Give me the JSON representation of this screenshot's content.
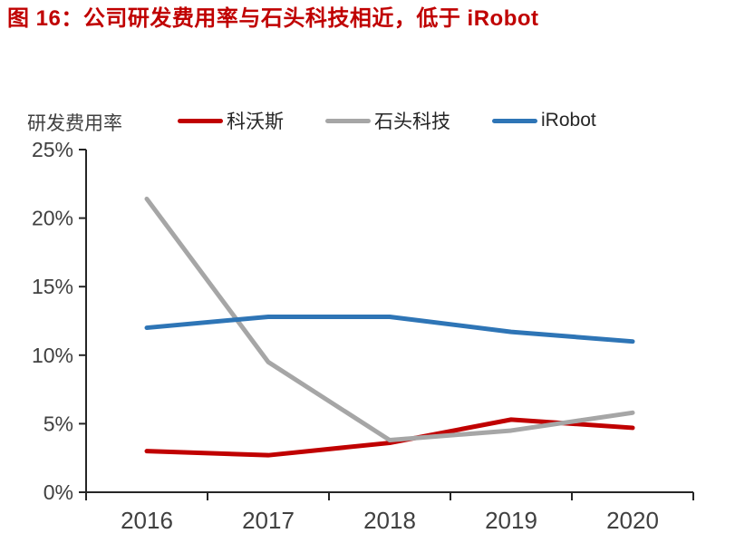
{
  "header": {
    "title": "图 16：公司研发费用率与石头科技相近，低于 iRobot"
  },
  "chart_data": {
    "type": "line",
    "y_axis_title": "研发费用率",
    "categories": [
      "2016",
      "2017",
      "2018",
      "2019",
      "2020"
    ],
    "series": [
      {
        "name": "科沃斯",
        "color": "#c00000",
        "values": [
          3.0,
          2.7,
          3.6,
          5.3,
          4.7
        ]
      },
      {
        "name": "石头科技",
        "color": "#a6a6a6",
        "values": [
          21.4,
          9.5,
          3.8,
          4.5,
          5.8
        ]
      },
      {
        "name": "iRobot",
        "color": "#2e75b6",
        "values": [
          12.0,
          12.8,
          12.8,
          11.7,
          11.0
        ]
      }
    ],
    "ylim": [
      0,
      25
    ],
    "ytick_step": 5,
    "ytick_suffix": "%",
    "grid": false,
    "legend_position": "top"
  },
  "colors": {
    "title": "#c00000",
    "axis": "#262626",
    "tick_label": "#404040"
  }
}
